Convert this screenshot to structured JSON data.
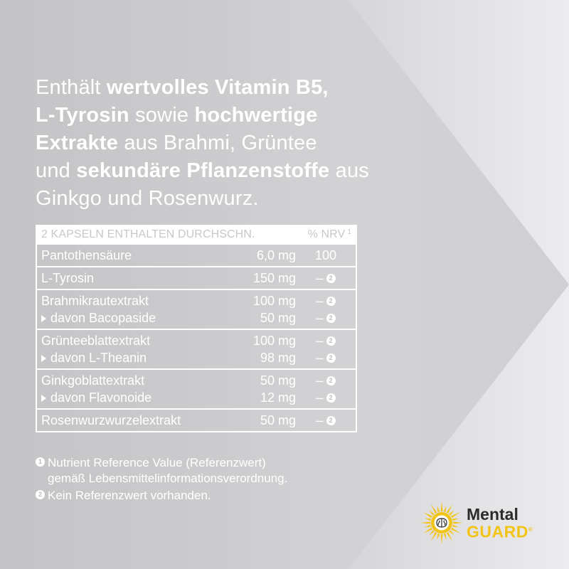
{
  "headline": {
    "parts": [
      {
        "text": "Enthält ",
        "bold": false
      },
      {
        "text": "wertvolles Vitamin B5,",
        "bold": true
      },
      {
        "text": "L-Tyrosin",
        "bold": true
      },
      {
        "text": " sowie ",
        "bold": false
      },
      {
        "text": "hochwertige",
        "bold": true
      },
      {
        "text": "Extrakte",
        "bold": true
      },
      {
        "text": " aus Brahmi, Grüntee",
        "bold": false
      },
      {
        "text": "und ",
        "bold": false
      },
      {
        "text": "sekundäre Pflanzenstoffe",
        "bold": true
      },
      {
        "text": " aus",
        "bold": false
      },
      {
        "text": "Ginkgo und Rosenwurz.",
        "bold": false
      }
    ]
  },
  "table": {
    "header_label": "2 KAPSELN ENTHALTEN DURCHSCHN.",
    "header_nrv": "% NRV",
    "header_nrv_ref": "1",
    "groups": [
      {
        "rows": [
          {
            "name": "Pantothensäure",
            "amount": "6,0 mg",
            "nrv": "100",
            "sub": false,
            "ref": ""
          }
        ]
      },
      {
        "rows": [
          {
            "name": "L-Tyrosin",
            "amount": "150 mg",
            "nrv": "–",
            "sub": false,
            "ref": "2"
          }
        ]
      },
      {
        "rows": [
          {
            "name": "Brahmikrautextrakt",
            "amount": "100 mg",
            "nrv": "–",
            "sub": false,
            "ref": "2"
          },
          {
            "name": "davon Bacopaside",
            "amount": "50 mg",
            "nrv": "–",
            "sub": true,
            "ref": "2"
          }
        ]
      },
      {
        "rows": [
          {
            "name": "Grünteeblattextrakt",
            "amount": "100 mg",
            "nrv": "–",
            "sub": false,
            "ref": "2"
          },
          {
            "name": "davon L-Theanin",
            "amount": "98 mg",
            "nrv": "–",
            "sub": true,
            "ref": "2"
          }
        ]
      },
      {
        "rows": [
          {
            "name": "Ginkgoblattextrakt",
            "amount": "50 mg",
            "nrv": "–",
            "sub": false,
            "ref": "2"
          },
          {
            "name": "davon Flavonoide",
            "amount": "12 mg",
            "nrv": "–",
            "sub": true,
            "ref": "2"
          }
        ]
      },
      {
        "rows": [
          {
            "name": "Rosenwurzwurzelextrakt",
            "amount": "50 mg",
            "nrv": "–",
            "sub": false,
            "ref": "2"
          }
        ]
      }
    ]
  },
  "footnotes": [
    {
      "ref": "1",
      "lines": [
        "Nutrient Reference Value (Referenzwert)",
        "gemäß Lebensmittelinformationsverordnung."
      ]
    },
    {
      "ref": "2",
      "lines": [
        "Kein Referenzwert vorhanden."
      ]
    }
  ],
  "logo": {
    "line1": "Mental",
    "line2": "GUARD",
    "mark": "®",
    "icon": "brain-sun-icon",
    "colors": {
      "yellow": "#f2c417",
      "dark": "#2b2b2b"
    }
  },
  "colors": {
    "background": "#cbcbcd",
    "arrow": "#e6e6e8",
    "text": "#ffffff"
  }
}
